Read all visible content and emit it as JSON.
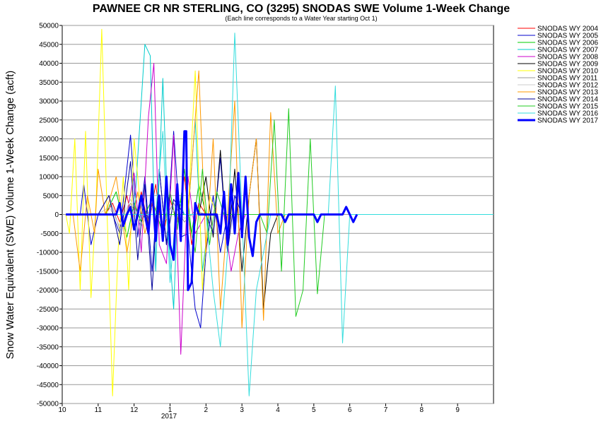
{
  "chart_data": {
    "type": "line",
    "title": "PAWNEE CR NR STERLING, CO (3295) SNODAS SWE Volume 1-Week Change",
    "subtitle": "(Each line corresponds to a Water Year starting Oct 1)",
    "ylabel": "Snow Water Equivalent (SWE) Volume 1-Week Change (acft)",
    "xlabel": "",
    "ylim": [
      -50000,
      50000
    ],
    "y_ticks": [
      "50000",
      "45000",
      "40000",
      "35000",
      "30000",
      "25000",
      "20000",
      "15000",
      "10000",
      "5000",
      "0",
      "-5000",
      "-10000",
      "-15000",
      "-20000",
      "-25000",
      "-30000",
      "-35000",
      "-40000",
      "-45000",
      "-50000"
    ],
    "x_ticks": [
      "10",
      "11",
      "12",
      "1",
      "2",
      "3",
      "4",
      "5",
      "6",
      "7",
      "8",
      "9"
    ],
    "x_year_label": "2017",
    "grid": true,
    "legend_placement": "right",
    "series": [
      {
        "name": "SNODAS WY 2004",
        "color": "#ff0000",
        "values": [
          [
            0.1,
            0
          ],
          [
            1.2,
            0
          ],
          [
            1.4,
            3000
          ],
          [
            1.6,
            -2000
          ],
          [
            1.8,
            5000
          ],
          [
            2.0,
            -4000
          ],
          [
            2.2,
            6000
          ],
          [
            2.4,
            -3000
          ],
          [
            2.6,
            8000
          ],
          [
            2.8,
            -6000
          ],
          [
            3.0,
            4000
          ],
          [
            3.2,
            -2000
          ],
          [
            3.4,
            10000
          ],
          [
            3.6,
            -8000
          ],
          [
            3.8,
            3000
          ],
          [
            4.0,
            0
          ],
          [
            6.0,
            0
          ]
        ]
      },
      {
        "name": "SNODAS WY 2005",
        "color": "#0000cc",
        "values": [
          [
            0.1,
            0
          ],
          [
            0.5,
            0
          ],
          [
            0.6,
            8000
          ],
          [
            0.8,
            -8000
          ],
          [
            1.0,
            0
          ],
          [
            1.4,
            0
          ],
          [
            1.6,
            -5000
          ],
          [
            1.9,
            21000
          ],
          [
            2.1,
            -6000
          ],
          [
            2.3,
            10000
          ],
          [
            2.5,
            -15000
          ],
          [
            2.7,
            12000
          ],
          [
            2.9,
            -8000
          ],
          [
            3.1,
            22000
          ],
          [
            3.3,
            -6000
          ],
          [
            3.5,
            -5000
          ],
          [
            3.7,
            -25000
          ],
          [
            3.85,
            -30000
          ],
          [
            4.0,
            -10000
          ],
          [
            4.2,
            5000
          ],
          [
            4.4,
            -10000
          ],
          [
            4.6,
            0
          ],
          [
            6.0,
            0
          ]
        ]
      },
      {
        "name": "SNODAS WY 2006",
        "color": "#00cc00",
        "values": [
          [
            0.1,
            0
          ],
          [
            1.2,
            0
          ],
          [
            1.5,
            6000
          ],
          [
            1.8,
            -6000
          ],
          [
            2.0,
            3000
          ],
          [
            2.2,
            -2000
          ],
          [
            2.5,
            4000
          ],
          [
            2.8,
            -5000
          ],
          [
            3.0,
            6000
          ],
          [
            3.2,
            -4000
          ],
          [
            3.4,
            12000
          ],
          [
            3.6,
            -5000
          ],
          [
            3.8,
            8000
          ],
          [
            4.0,
            0
          ],
          [
            6.0,
            0
          ]
        ]
      },
      {
        "name": "SNODAS WY 2007",
        "color": "#00cccc",
        "values": [
          [
            0.1,
            0
          ],
          [
            2.0,
            0
          ],
          [
            2.3,
            45000
          ],
          [
            2.45,
            42000
          ],
          [
            2.6,
            -15000
          ],
          [
            2.8,
            36000
          ],
          [
            2.95,
            -5000
          ],
          [
            3.1,
            -25000
          ],
          [
            3.2,
            0
          ],
          [
            3.5,
            0
          ],
          [
            3.7,
            25000
          ],
          [
            3.9,
            -15000
          ],
          [
            4.1,
            0
          ],
          [
            6.0,
            0
          ]
        ]
      },
      {
        "name": "SNODAS WY 2008",
        "color": "#cc00cc",
        "values": [
          [
            0.1,
            0
          ],
          [
            1.8,
            0
          ],
          [
            2.0,
            11000
          ],
          [
            2.2,
            -10000
          ],
          [
            2.4,
            26000
          ],
          [
            2.55,
            40000
          ],
          [
            2.7,
            -8000
          ],
          [
            2.9,
            -13000
          ],
          [
            3.1,
            21000
          ],
          [
            3.3,
            -37000
          ],
          [
            3.5,
            10000
          ],
          [
            3.7,
            -5000
          ],
          [
            4.0,
            0
          ],
          [
            4.5,
            0
          ],
          [
            4.7,
            -15000
          ],
          [
            4.9,
            -5000
          ],
          [
            5.1,
            0
          ],
          [
            6.0,
            0
          ]
        ]
      },
      {
        "name": "SNODAS WY 2009",
        "color": "#000000",
        "values": [
          [
            0.1,
            0
          ],
          [
            3.8,
            0
          ],
          [
            4.0,
            10000
          ],
          [
            4.2,
            -6000
          ],
          [
            4.4,
            17000
          ],
          [
            4.6,
            -10000
          ],
          [
            4.8,
            12000
          ],
          [
            5.0,
            -15000
          ],
          [
            5.2,
            5000
          ],
          [
            5.4,
            20000
          ],
          [
            5.6,
            -25000
          ],
          [
            5.8,
            -5000
          ],
          [
            6.0,
            0
          ]
        ]
      },
      {
        "name": "SNODAS WY 2010",
        "color": "#ffff00",
        "values": [
          [
            0.1,
            0
          ],
          [
            0.2,
            -5000
          ],
          [
            0.35,
            20000
          ],
          [
            0.5,
            -20000
          ],
          [
            0.65,
            22000
          ],
          [
            0.8,
            -22000
          ],
          [
            0.95,
            5000
          ],
          [
            1.1,
            49000
          ],
          [
            1.25,
            0
          ],
          [
            1.4,
            -48000
          ],
          [
            1.55,
            -10000
          ],
          [
            1.7,
            10000
          ],
          [
            1.85,
            -20000
          ],
          [
            2.0,
            20000
          ],
          [
            2.2,
            0
          ],
          [
            3.5,
            0
          ],
          [
            3.7,
            38000
          ],
          [
            3.9,
            -20000
          ],
          [
            4.1,
            5000
          ],
          [
            4.3,
            0
          ],
          [
            6.0,
            0
          ]
        ]
      },
      {
        "name": "SNODAS WY 2011",
        "color": "#999999",
        "values": [
          [
            0.1,
            0
          ],
          [
            1.0,
            0
          ],
          [
            1.3,
            5000
          ],
          [
            1.6,
            -4000
          ],
          [
            1.9,
            3000
          ],
          [
            2.2,
            -3000
          ],
          [
            2.5,
            2000
          ],
          [
            2.8,
            -2000
          ],
          [
            3.1,
            3000
          ],
          [
            3.4,
            -2000
          ],
          [
            3.7,
            1000
          ],
          [
            4.0,
            0
          ],
          [
            6.0,
            0
          ]
        ]
      },
      {
        "name": "SNODAS WY 2012",
        "color": "#cccccc",
        "values": [
          [
            0.1,
            0
          ],
          [
            1.0,
            0
          ],
          [
            1.3,
            2000
          ],
          [
            1.6,
            -3000
          ],
          [
            1.9,
            4000
          ],
          [
            2.2,
            -3000
          ],
          [
            2.5,
            2000
          ],
          [
            2.8,
            -2000
          ],
          [
            3.1,
            1000
          ],
          [
            3.4,
            -1000
          ],
          [
            3.7,
            0
          ],
          [
            6.0,
            0
          ]
        ]
      },
      {
        "name": "SNODAS WY 2013",
        "color": "#ff9900",
        "values": [
          [
            0.1,
            0
          ],
          [
            0.3,
            0
          ],
          [
            0.5,
            -15000
          ],
          [
            0.7,
            5000
          ],
          [
            0.9,
            -5000
          ],
          [
            1.0,
            12000
          ],
          [
            1.2,
            0
          ],
          [
            1.5,
            10000
          ],
          [
            1.8,
            -10000
          ],
          [
            2.1,
            6000
          ],
          [
            2.3,
            -5000
          ],
          [
            2.5,
            3000
          ],
          [
            2.7,
            0
          ],
          [
            3.5,
            0
          ],
          [
            3.8,
            38000
          ],
          [
            4.0,
            -10000
          ],
          [
            4.2,
            20000
          ],
          [
            4.4,
            -25000
          ],
          [
            4.6,
            0
          ],
          [
            4.8,
            30000
          ],
          [
            5.0,
            -30000
          ],
          [
            5.2,
            5000
          ],
          [
            5.4,
            20000
          ],
          [
            5.6,
            -28000
          ],
          [
            5.8,
            27000
          ],
          [
            6.0,
            -5000
          ],
          [
            6.2,
            0
          ],
          [
            7.2,
            0
          ]
        ]
      },
      {
        "name": "SNODAS WY 2014",
        "color": "#00009a",
        "values": [
          [
            0.1,
            0
          ],
          [
            1.0,
            0
          ],
          [
            1.3,
            5000
          ],
          [
            1.6,
            -8000
          ],
          [
            1.9,
            14000
          ],
          [
            2.1,
            -12000
          ],
          [
            2.3,
            8000
          ],
          [
            2.5,
            -20000
          ],
          [
            2.7,
            12000
          ],
          [
            2.9,
            -8000
          ],
          [
            3.1,
            4000
          ],
          [
            3.4,
            0
          ],
          [
            4.0,
            0
          ],
          [
            4.2,
            -5000
          ],
          [
            4.4,
            15000
          ],
          [
            4.6,
            -10000
          ],
          [
            4.8,
            5000
          ],
          [
            5.0,
            0
          ],
          [
            6.0,
            0
          ]
        ]
      },
      {
        "name": "SNODAS WY 2015",
        "color": "#22cc22",
        "values": [
          [
            0.1,
            0
          ],
          [
            3.5,
            0
          ],
          [
            3.7,
            -10000
          ],
          [
            3.9,
            12000
          ],
          [
            4.1,
            -8000
          ],
          [
            4.3,
            6000
          ],
          [
            4.5,
            0
          ],
          [
            5.5,
            0
          ],
          [
            5.7,
            -5000
          ],
          [
            5.9,
            25000
          ],
          [
            6.1,
            -15000
          ],
          [
            6.3,
            28000
          ],
          [
            6.5,
            -27000
          ],
          [
            6.7,
            -20000
          ],
          [
            6.9,
            20000
          ],
          [
            7.1,
            -21000
          ],
          [
            7.3,
            0
          ],
          [
            7.6,
            0
          ]
        ]
      },
      {
        "name": "SNODAS WY 2016",
        "color": "#33dddd",
        "values": [
          [
            0.1,
            0
          ],
          [
            2.6,
            0
          ],
          [
            2.8,
            22000
          ],
          [
            3.0,
            -18000
          ],
          [
            3.2,
            5000
          ],
          [
            3.4,
            0
          ],
          [
            4.0,
            0
          ],
          [
            4.2,
            -20000
          ],
          [
            4.4,
            -35000
          ],
          [
            4.6,
            -10000
          ],
          [
            4.8,
            48000
          ],
          [
            5.0,
            0
          ],
          [
            5.2,
            -48000
          ],
          [
            5.4,
            -20000
          ],
          [
            5.6,
            -10000
          ],
          [
            5.8,
            0
          ],
          [
            7.4,
            0
          ],
          [
            7.6,
            34000
          ],
          [
            7.8,
            -34000
          ],
          [
            8.0,
            0
          ],
          [
            12.0,
            0
          ]
        ]
      },
      {
        "name": "SNODAS WY 2017",
        "color": "#0000ff",
        "bold": true,
        "values": [
          [
            0.1,
            0
          ],
          [
            1.5,
            0
          ],
          [
            1.6,
            3000
          ],
          [
            1.7,
            -3000
          ],
          [
            1.8,
            0
          ],
          [
            1.9,
            2000
          ],
          [
            2.0,
            -4000
          ],
          [
            2.1,
            0
          ],
          [
            2.2,
            5000
          ],
          [
            2.4,
            -5000
          ],
          [
            2.5,
            8000
          ],
          [
            2.6,
            -7000
          ],
          [
            2.7,
            5000
          ],
          [
            2.8,
            -7000
          ],
          [
            2.9,
            10000
          ],
          [
            3.0,
            -8000
          ],
          [
            3.1,
            -12000
          ],
          [
            3.2,
            8000
          ],
          [
            3.3,
            -7000
          ],
          [
            3.4,
            22000
          ],
          [
            3.45,
            22000
          ],
          [
            3.5,
            -20000
          ],
          [
            3.6,
            -18000
          ],
          [
            3.7,
            3000
          ],
          [
            3.8,
            0
          ],
          [
            4.3,
            0
          ],
          [
            4.4,
            -5000
          ],
          [
            4.5,
            6000
          ],
          [
            4.6,
            -8000
          ],
          [
            4.7,
            8000
          ],
          [
            4.8,
            -5000
          ],
          [
            4.9,
            11000
          ],
          [
            5.0,
            -6000
          ],
          [
            5.1,
            10000
          ],
          [
            5.2,
            -6000
          ],
          [
            5.3,
            -11000
          ],
          [
            5.4,
            -2000
          ],
          [
            5.5,
            0
          ],
          [
            6.1,
            0
          ],
          [
            6.2,
            -2000
          ],
          [
            6.3,
            0
          ],
          [
            7.0,
            0
          ],
          [
            7.1,
            -2000
          ],
          [
            7.2,
            0
          ],
          [
            7.8,
            0
          ],
          [
            7.9,
            2000
          ],
          [
            8.0,
            0
          ],
          [
            8.1,
            -2000
          ],
          [
            8.2,
            0
          ]
        ]
      }
    ]
  }
}
